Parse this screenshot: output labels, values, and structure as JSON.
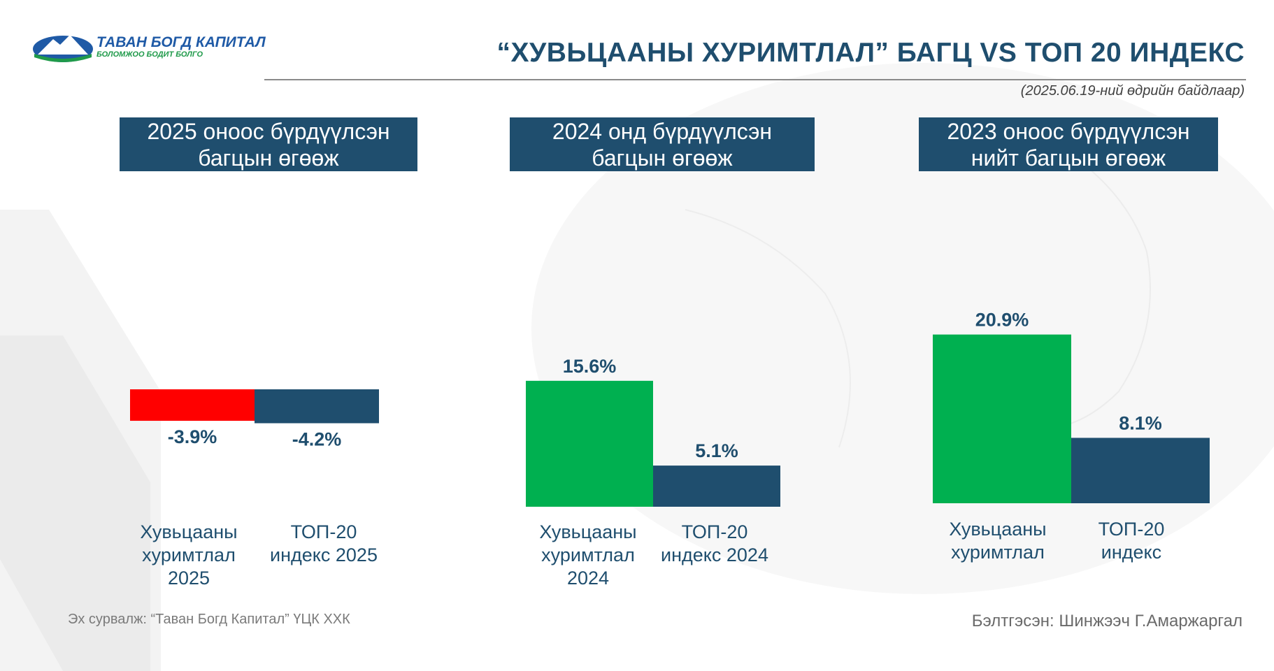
{
  "header": {
    "logo_name": "ТАВАН БОГД КАПИТАЛ",
    "logo_tagline": "БОЛОМЖОО БОДИТ БОЛГО",
    "title": "“ХУВЬЦААНЫ ХУРИМТЛАЛ” БАГЦ VS ТОП 20 ИНДЕКС",
    "date_note": "(2025.06.19-ний өдрийн байдлаар)"
  },
  "panels": [
    {
      "header_lines": [
        "2025 оноос бүрдүүлсэн",
        "багцын өгөөж"
      ]
    },
    {
      "header_lines": [
        "2024 онд бүрдүүлсэн",
        "багцын өгөөж"
      ]
    },
    {
      "header_lines": [
        "2023 оноос бүрдүүлсэн",
        "нийт багцын өгөөж"
      ]
    }
  ],
  "colors": {
    "navy": "#1f4e6e",
    "green": "#00b050",
    "red": "#ff0000"
  },
  "chart_data": [
    {
      "type": "bar",
      "categories": [
        [
          "Хувьцааны",
          "хуримтлал",
          "2025"
        ],
        [
          "ТОП-20",
          "индекс 2025"
        ]
      ],
      "values": [
        -3.9,
        -4.2
      ],
      "data_labels": [
        "-3.9%",
        "-4.2%"
      ],
      "bar_colors": [
        "#ff0000",
        "#1f4e6e"
      ]
    },
    {
      "type": "bar",
      "categories": [
        [
          "Хувьцааны",
          "хуримтлал",
          "2024"
        ],
        [
          "ТОП-20",
          "индекс 2024"
        ]
      ],
      "values": [
        15.6,
        5.1
      ],
      "data_labels": [
        "15.6%",
        "5.1%"
      ],
      "bar_colors": [
        "#00b050",
        "#1f4e6e"
      ]
    },
    {
      "type": "bar",
      "categories": [
        [
          "Хувьцааны",
          "хуримтлал"
        ],
        [
          "ТОП-20",
          "индекс"
        ]
      ],
      "values": [
        20.9,
        8.1
      ],
      "data_labels": [
        "20.9%",
        "8.1%"
      ],
      "bar_colors": [
        "#00b050",
        "#1f4e6e"
      ]
    }
  ],
  "footer": {
    "source": "Эх сурвалж: “Таван Богд Капитал” ҮЦК ХХК",
    "prepared_by": "Бэлтгэсэн: Шинжээч Г.Амаржаргал"
  }
}
